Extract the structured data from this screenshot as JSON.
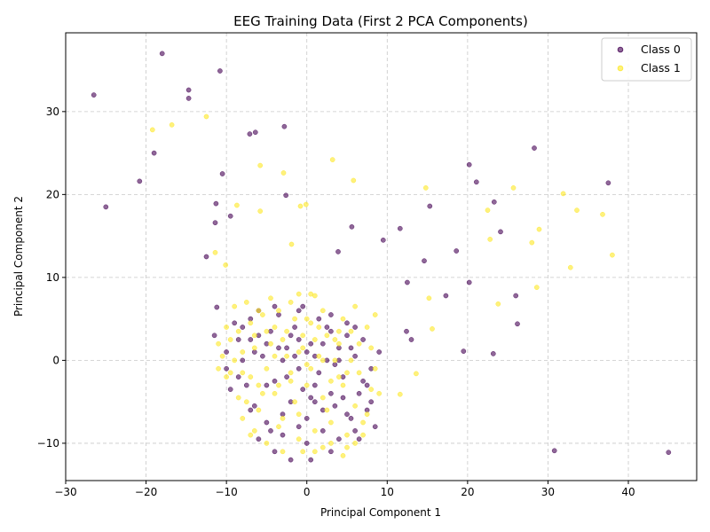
{
  "chart_data": {
    "type": "scatter",
    "title": "EEG Training Data (First 2 PCA Components)",
    "xlabel": "Principal Component 1",
    "ylabel": "Principal Component 2",
    "xlim": [
      -30,
      48.5
    ],
    "ylim": [
      -14.5,
      39.5
    ],
    "xticks": [
      -30,
      -20,
      -10,
      0,
      10,
      20,
      30,
      40
    ],
    "yticks": [
      -10,
      0,
      10,
      20,
      30
    ],
    "grid": true,
    "legend_position": "top-right",
    "series": [
      {
        "name": "Class 0",
        "color": "#440154",
        "points": [
          [
            -26.5,
            32.0
          ],
          [
            -18.0,
            37.0
          ],
          [
            -14.7,
            32.6
          ],
          [
            -14.7,
            31.6
          ],
          [
            -10.8,
            34.9
          ],
          [
            -19.0,
            25.0
          ],
          [
            -20.8,
            21.6
          ],
          [
            -25.0,
            18.5
          ],
          [
            -10.5,
            22.5
          ],
          [
            -11.3,
            18.9
          ],
          [
            -11.4,
            16.6
          ],
          [
            -9.5,
            17.4
          ],
          [
            -12.5,
            12.5
          ],
          [
            -11.2,
            6.4
          ],
          [
            -7.1,
            27.3
          ],
          [
            -6.4,
            27.5
          ],
          [
            -2.8,
            28.2
          ],
          [
            -2.6,
            19.9
          ],
          [
            3.9,
            13.1
          ],
          [
            5.6,
            16.1
          ],
          [
            9.5,
            14.5
          ],
          [
            11.6,
            15.9
          ],
          [
            14.6,
            12.0
          ],
          [
            15.3,
            18.6
          ],
          [
            12.5,
            9.4
          ],
          [
            17.3,
            7.8
          ],
          [
            18.6,
            13.2
          ],
          [
            20.2,
            23.6
          ],
          [
            20.2,
            9.4
          ],
          [
            21.1,
            21.5
          ],
          [
            23.3,
            19.1
          ],
          [
            24.1,
            15.5
          ],
          [
            26.0,
            7.8
          ],
          [
            26.2,
            4.4
          ],
          [
            28.3,
            25.6
          ],
          [
            37.5,
            21.4
          ],
          [
            12.4,
            3.5
          ],
          [
            13.0,
            2.5
          ],
          [
            19.5,
            1.1
          ],
          [
            23.2,
            0.8
          ],
          [
            30.8,
            -10.9
          ],
          [
            45.0,
            -11.1
          ],
          [
            -11.5,
            3.0
          ],
          [
            -10.0,
            1.0
          ],
          [
            -9.5,
            -3.5
          ],
          [
            -8.0,
            4.0
          ],
          [
            -8.5,
            -2.0
          ],
          [
            -7.0,
            2.5
          ],
          [
            -6.5,
            -5.5
          ],
          [
            -6.0,
            6.0
          ],
          [
            -5.5,
            0.5
          ],
          [
            -5.0,
            -7.5
          ],
          [
            -4.5,
            3.5
          ],
          [
            -4.0,
            -2.5
          ],
          [
            -3.5,
            5.5
          ],
          [
            -3.0,
            -9.0
          ],
          [
            -2.5,
            1.5
          ],
          [
            -2.0,
            -5.0
          ],
          [
            -1.5,
            4.0
          ],
          [
            -1.0,
            -1.0
          ],
          [
            -0.5,
            6.5
          ],
          [
            0.0,
            -7.0
          ],
          [
            0.5,
            2.0
          ],
          [
            1.0,
            -3.0
          ],
          [
            1.5,
            5.0
          ],
          [
            2.0,
            -8.5
          ],
          [
            2.5,
            0.0
          ],
          [
            3.0,
            3.5
          ],
          [
            3.5,
            -5.5
          ],
          [
            4.0,
            1.5
          ],
          [
            4.5,
            -2.0
          ],
          [
            5.0,
            4.5
          ],
          [
            5.5,
            -7.0
          ],
          [
            6.0,
            0.5
          ],
          [
            6.5,
            -4.0
          ],
          [
            7.0,
            2.5
          ],
          [
            7.5,
            -6.0
          ],
          [
            8.0,
            -1.0
          ],
          [
            8.5,
            -8.0
          ],
          [
            9.0,
            1.0
          ],
          [
            -7.5,
            -3.0
          ],
          [
            -6.0,
            -9.5
          ],
          [
            -5.0,
            2.0
          ],
          [
            -4.0,
            -11.0
          ],
          [
            -3.0,
            0.0
          ],
          [
            -2.0,
            -12.0
          ],
          [
            -1.0,
            2.5
          ],
          [
            0.0,
            -10.0
          ],
          [
            1.0,
            0.5
          ],
          [
            2.0,
            -6.0
          ],
          [
            3.0,
            5.5
          ],
          [
            4.0,
            -9.5
          ],
          [
            5.0,
            3.0
          ],
          [
            6.0,
            -8.5
          ],
          [
            -8.0,
            0.0
          ],
          [
            -9.0,
            4.5
          ],
          [
            -7.0,
            -6.0
          ],
          [
            -6.0,
            3.0
          ],
          [
            -5.0,
            -3.0
          ],
          [
            -4.0,
            6.5
          ],
          [
            -3.0,
            -6.5
          ],
          [
            -2.0,
            3.0
          ],
          [
            -1.0,
            -8.0
          ],
          [
            0.0,
            1.0
          ],
          [
            1.0,
            -5.0
          ],
          [
            2.0,
            2.0
          ],
          [
            3.0,
            -4.0
          ],
          [
            4.0,
            0.0
          ],
          [
            5.0,
            -6.5
          ],
          [
            6.0,
            4.0
          ],
          [
            7.0,
            -2.5
          ],
          [
            -10.0,
            -1.0
          ],
          [
            -3.5,
            1.5
          ],
          [
            -0.5,
            -3.5
          ],
          [
            1.5,
            -1.5
          ],
          [
            3.5,
            -0.5
          ],
          [
            -2.5,
            -2.0
          ],
          [
            0.5,
            -4.5
          ],
          [
            2.5,
            4.0
          ],
          [
            4.5,
            -4.5
          ],
          [
            -1.5,
            0.5
          ],
          [
            -6.5,
            1.0
          ],
          [
            5.5,
            1.5
          ],
          [
            6.5,
            -9.5
          ],
          [
            8.0,
            -5.0
          ],
          [
            -4.5,
            -8.5
          ],
          [
            -1.0,
            6.0
          ],
          [
            3.0,
            -11.0
          ],
          [
            0.5,
            -12.0
          ],
          [
            -8.5,
            2.5
          ],
          [
            -7.0,
            5.0
          ],
          [
            7.5,
            -3.0
          ]
        ]
      },
      {
        "name": "Class 1",
        "color": "#fde725",
        "points": [
          [
            -12.5,
            29.4
          ],
          [
            -19.2,
            27.8
          ],
          [
            -16.8,
            28.4
          ],
          [
            -5.8,
            23.5
          ],
          [
            -2.9,
            22.6
          ],
          [
            3.2,
            24.2
          ],
          [
            5.8,
            21.7
          ],
          [
            -8.7,
            18.7
          ],
          [
            -5.8,
            18.0
          ],
          [
            -0.8,
            18.6
          ],
          [
            -0.1,
            18.8
          ],
          [
            -11.4,
            13.0
          ],
          [
            -10.1,
            11.5
          ],
          [
            -1.9,
            14.0
          ],
          [
            14.8,
            20.8
          ],
          [
            25.7,
            20.8
          ],
          [
            31.9,
            20.1
          ],
          [
            33.6,
            18.1
          ],
          [
            36.8,
            17.6
          ],
          [
            22.5,
            18.1
          ],
          [
            22.8,
            14.6
          ],
          [
            28.0,
            14.2
          ],
          [
            28.9,
            15.8
          ],
          [
            38.0,
            12.7
          ],
          [
            32.8,
            11.2
          ],
          [
            28.6,
            8.8
          ],
          [
            15.2,
            7.5
          ],
          [
            15.6,
            3.8
          ],
          [
            23.8,
            6.8
          ],
          [
            13.6,
            -1.6
          ],
          [
            11.6,
            -4.1
          ],
          [
            -1.0,
            8.0
          ],
          [
            0.5,
            8.0
          ],
          [
            1.0,
            7.8
          ],
          [
            -11.0,
            2.0
          ],
          [
            -10.0,
            4.0
          ],
          [
            -9.5,
            -1.5
          ],
          [
            -9.0,
            6.5
          ],
          [
            -8.5,
            -4.5
          ],
          [
            -8.0,
            1.0
          ],
          [
            -7.5,
            7.0
          ],
          [
            -7.0,
            -2.0
          ],
          [
            -6.5,
            3.0
          ],
          [
            -6.0,
            -6.0
          ],
          [
            -5.5,
            5.5
          ],
          [
            -5.0,
            -1.0
          ],
          [
            -4.5,
            2.0
          ],
          [
            -4.0,
            -4.0
          ],
          [
            -3.5,
            6.0
          ],
          [
            -3.0,
            -7.0
          ],
          [
            -2.5,
            3.5
          ],
          [
            -2.0,
            -2.5
          ],
          [
            -1.5,
            5.0
          ],
          [
            -1.0,
            -6.5
          ],
          [
            -0.5,
            1.5
          ],
          [
            0.0,
            -3.0
          ],
          [
            0.5,
            4.5
          ],
          [
            1.0,
            -8.5
          ],
          [
            1.5,
            0.5
          ],
          [
            2.0,
            -4.5
          ],
          [
            2.5,
            3.0
          ],
          [
            3.0,
            -7.5
          ],
          [
            3.5,
            2.5
          ],
          [
            4.0,
            -2.0
          ],
          [
            4.5,
            5.0
          ],
          [
            5.0,
            -9.0
          ],
          [
            5.5,
            0.0
          ],
          [
            6.0,
            -5.5
          ],
          [
            6.5,
            2.0
          ],
          [
            7.0,
            -7.5
          ],
          [
            7.5,
            4.0
          ],
          [
            8.0,
            -3.5
          ],
          [
            8.5,
            5.5
          ],
          [
            9.0,
            -4.0
          ],
          [
            -8.0,
            -7.0
          ],
          [
            -7.0,
            -9.0
          ],
          [
            -6.0,
            6.0
          ],
          [
            -5.0,
            -10.0
          ],
          [
            -4.0,
            4.0
          ],
          [
            -3.0,
            -11.0
          ],
          [
            -2.0,
            7.0
          ],
          [
            -1.0,
            -9.5
          ],
          [
            0.0,
            5.0
          ],
          [
            1.0,
            -11.0
          ],
          [
            2.0,
            6.0
          ],
          [
            3.0,
            -10.0
          ],
          [
            4.0,
            3.5
          ],
          [
            5.0,
            -10.5
          ],
          [
            6.0,
            6.5
          ],
          [
            7.0,
            -9.0
          ],
          [
            8.0,
            1.5
          ],
          [
            -9.0,
            0.0
          ],
          [
            -10.0,
            -2.0
          ],
          [
            -8.5,
            3.5
          ],
          [
            -7.5,
            -5.0
          ],
          [
            -6.5,
            1.5
          ],
          [
            -5.5,
            -4.0
          ],
          [
            -4.5,
            7.5
          ],
          [
            -3.5,
            -3.0
          ],
          [
            -2.5,
            0.5
          ],
          [
            -1.5,
            -5.0
          ],
          [
            -0.5,
            3.0
          ],
          [
            0.5,
            -1.0
          ],
          [
            1.5,
            4.0
          ],
          [
            2.5,
            -6.0
          ],
          [
            3.5,
            0.0
          ],
          [
            4.5,
            -3.0
          ],
          [
            5.5,
            3.5
          ],
          [
            6.5,
            -1.5
          ],
          [
            7.5,
            -6.5
          ],
          [
            8.5,
            -1.0
          ],
          [
            -3.0,
            2.5
          ],
          [
            -2.0,
            -1.5
          ],
          [
            -1.0,
            1.0
          ],
          [
            0.0,
            -0.5
          ],
          [
            1.0,
            2.5
          ],
          [
            2.0,
            0.0
          ],
          [
            3.0,
            -2.5
          ],
          [
            4.0,
            2.0
          ],
          [
            5.0,
            -1.5
          ],
          [
            -4.0,
            0.5
          ],
          [
            -5.0,
            3.5
          ],
          [
            -6.0,
            -3.0
          ],
          [
            -7.0,
            4.5
          ],
          [
            -8.0,
            -1.5
          ],
          [
            -9.5,
            2.5
          ],
          [
            -10.5,
            0.5
          ],
          [
            -11.0,
            -1.0
          ],
          [
            6.0,
            -10.0
          ],
          [
            4.5,
            -11.5
          ],
          [
            2.0,
            -10.5
          ],
          [
            -0.5,
            -11.0
          ],
          [
            -3.5,
            -8.0
          ],
          [
            -6.5,
            -8.5
          ]
        ]
      }
    ]
  }
}
